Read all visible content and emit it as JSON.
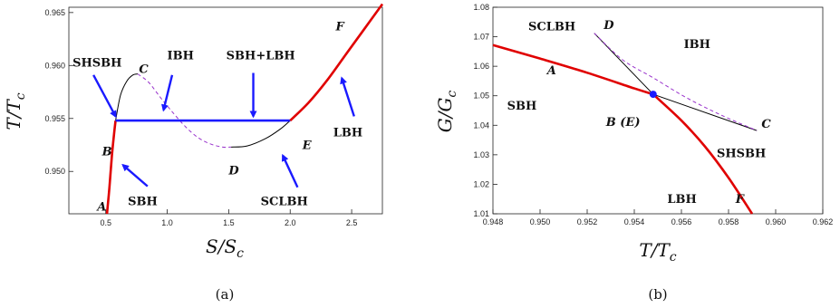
{
  "chart_data": [
    {
      "type": "line",
      "panel_caption": "(a)",
      "xlabel": "S/S_c",
      "ylabel": "T/T_c",
      "xlim": [
        0.2,
        2.75
      ],
      "ylim": [
        0.946,
        0.9655
      ],
      "xticks": [
        "0.5",
        "1.0",
        "1.5",
        "2.0",
        "2.5"
      ],
      "yticks": [
        "0.950",
        "0.955",
        "0.960",
        "0.965"
      ],
      "series": [
        {
          "key": "stable-sbh",
          "color": "#e00000",
          "style": "solid",
          "x": [
            0.51,
            0.53,
            0.55,
            0.57,
            0.58
          ],
          "y": [
            0.946,
            0.9485,
            0.9515,
            0.9538,
            0.9548
          ]
        },
        {
          "key": "metastable-sbh",
          "color": "#000000",
          "style": "solid",
          "x": [
            0.58,
            0.62,
            0.67,
            0.72,
            0.76
          ],
          "y": [
            0.9548,
            0.9572,
            0.9585,
            0.9591,
            0.9592
          ]
        },
        {
          "key": "unstable-ibh",
          "color": "#9933cc",
          "style": "dashed",
          "x": [
            0.76,
            0.85,
            0.95,
            1.05,
            1.15,
            1.25,
            1.35,
            1.45,
            1.52
          ],
          "y": [
            0.9592,
            0.9584,
            0.9569,
            0.9555,
            0.9542,
            0.9532,
            0.9526,
            0.9523,
            0.9523
          ]
        },
        {
          "key": "metastable-lbh",
          "color": "#000000",
          "style": "solid",
          "x": [
            1.52,
            1.65,
            1.8,
            1.92,
            2.0
          ],
          "y": [
            0.9523,
            0.9524,
            0.9531,
            0.954,
            0.9548
          ]
        },
        {
          "key": "coexistence",
          "color": "#1a1aff",
          "style": "solid",
          "x": [
            0.58,
            2.0
          ],
          "y": [
            0.9548,
            0.9548
          ]
        },
        {
          "key": "stable-lbh",
          "color": "#e00000",
          "style": "solid",
          "x": [
            2.0,
            2.15,
            2.3,
            2.45,
            2.6,
            2.75
          ],
          "y": [
            0.9548,
            0.9565,
            0.9586,
            0.961,
            0.9634,
            0.9658
          ]
        }
      ],
      "point_labels": [
        {
          "text": "A",
          "x": 0.43,
          "y": 0.9463
        },
        {
          "text": "B",
          "x": 0.47,
          "y": 0.9515
        },
        {
          "text": "C",
          "x": 0.77,
          "y": 0.9593
        },
        {
          "text": "D",
          "x": 1.5,
          "y": 0.9497
        },
        {
          "text": "E",
          "x": 2.1,
          "y": 0.9521
        },
        {
          "text": "F",
          "x": 2.37,
          "y": 0.9633
        }
      ],
      "annotations": [
        {
          "text": "SHSBH",
          "lx": 0.23,
          "ly": 0.9599,
          "ax1": 0.4,
          "ay1": 0.9591,
          "ax2": 0.58,
          "ay2": 0.9552
        },
        {
          "text": "IBH",
          "lx": 1.0,
          "ly": 0.9606,
          "ax1": 1.04,
          "ay1": 0.9591,
          "ax2": 0.97,
          "ay2": 0.9558
        },
        {
          "text": "SBH+LBH",
          "lx": 1.48,
          "ly": 0.9606,
          "ax1": 1.7,
          "ay1": 0.9593,
          "ax2": 1.7,
          "ay2": 0.9552
        },
        {
          "text": "LBH",
          "lx": 2.35,
          "ly": 0.9533,
          "ax1": 2.52,
          "ay1": 0.9552,
          "ax2": 2.42,
          "ay2": 0.9588
        },
        {
          "text": "SBH",
          "lx": 0.68,
          "ly": 0.9468,
          "ax1": 0.84,
          "ay1": 0.9486,
          "ax2": 0.64,
          "ay2": 0.9506
        },
        {
          "text": "SCLBH",
          "lx": 1.76,
          "ly": 0.9468,
          "ax1": 2.06,
          "ay1": 0.9485,
          "ax2": 1.94,
          "ay2": 0.9515
        }
      ]
    },
    {
      "type": "line",
      "panel_caption": "(b)",
      "xlabel": "T/T_c",
      "ylabel": "G/G_c",
      "xlim": [
        0.948,
        0.962
      ],
      "ylim": [
        1.01,
        1.08
      ],
      "xticks": [
        "0.948",
        "0.950",
        "0.952",
        "0.954",
        "0.956",
        "0.958",
        "0.960",
        "0.962"
      ],
      "yticks": [
        "1.01",
        "1.02",
        "1.03",
        "1.04",
        "1.05",
        "1.06",
        "1.07",
        "1.08"
      ],
      "series": [
        {
          "key": "sbh-branch",
          "color": "#e00000",
          "style": "solid",
          "x": [
            0.948,
            0.95,
            0.952,
            0.954,
            0.9548
          ],
          "y": [
            1.0672,
            1.0626,
            1.0578,
            1.0525,
            1.0505
          ]
        },
        {
          "key": "lbh-branch",
          "color": "#e00000",
          "style": "solid",
          "x": [
            0.9548,
            0.956,
            0.957,
            0.958,
            0.959
          ],
          "y": [
            1.0505,
            1.0416,
            1.0328,
            1.0222,
            1.01
          ]
        },
        {
          "key": "metastable-sbh",
          "color": "#000000",
          "style": "solid",
          "x": [
            0.9548,
            0.9592
          ],
          "y": [
            1.0505,
            1.0382
          ]
        },
        {
          "key": "metastable-lbh",
          "color": "#000000",
          "style": "solid",
          "x": [
            0.9523,
            0.9548
          ],
          "y": [
            1.0712,
            1.0505
          ]
        },
        {
          "key": "unstable-ibh",
          "color": "#9933cc",
          "style": "dashed",
          "x": [
            0.9523,
            0.9535,
            0.9548,
            0.9562,
            0.9577,
            0.9592
          ],
          "y": [
            1.0712,
            1.0622,
            1.0561,
            1.0494,
            1.0434,
            1.0382
          ]
        }
      ],
      "critical_point": {
        "x": 0.9548,
        "y": 1.0505,
        "color": "#1a1aff"
      },
      "labels": [
        {
          "text": "SCLBH",
          "x": 0.9495,
          "y": 1.0722,
          "italic": false
        },
        {
          "text": "D",
          "x": 0.9527,
          "y": 1.0727,
          "italic": true
        },
        {
          "text": "IBH",
          "x": 0.9561,
          "y": 1.0662,
          "italic": false
        },
        {
          "text": "A",
          "x": 0.9503,
          "y": 1.0573,
          "italic": true
        },
        {
          "text": "SBH",
          "x": 0.9486,
          "y": 1.0453,
          "italic": false
        },
        {
          "text": "B (E)",
          "x": 0.9528,
          "y": 1.0398,
          "italic": true
        },
        {
          "text": "C",
          "x": 0.9594,
          "y": 1.0392,
          "italic": true
        },
        {
          "text": "SHSBH",
          "x": 0.9575,
          "y": 1.0292,
          "italic": false
        },
        {
          "text": "LBH",
          "x": 0.9554,
          "y": 1.0137,
          "italic": false
        },
        {
          "text": "F",
          "x": 0.9583,
          "y": 1.0137,
          "italic": true
        }
      ]
    }
  ]
}
